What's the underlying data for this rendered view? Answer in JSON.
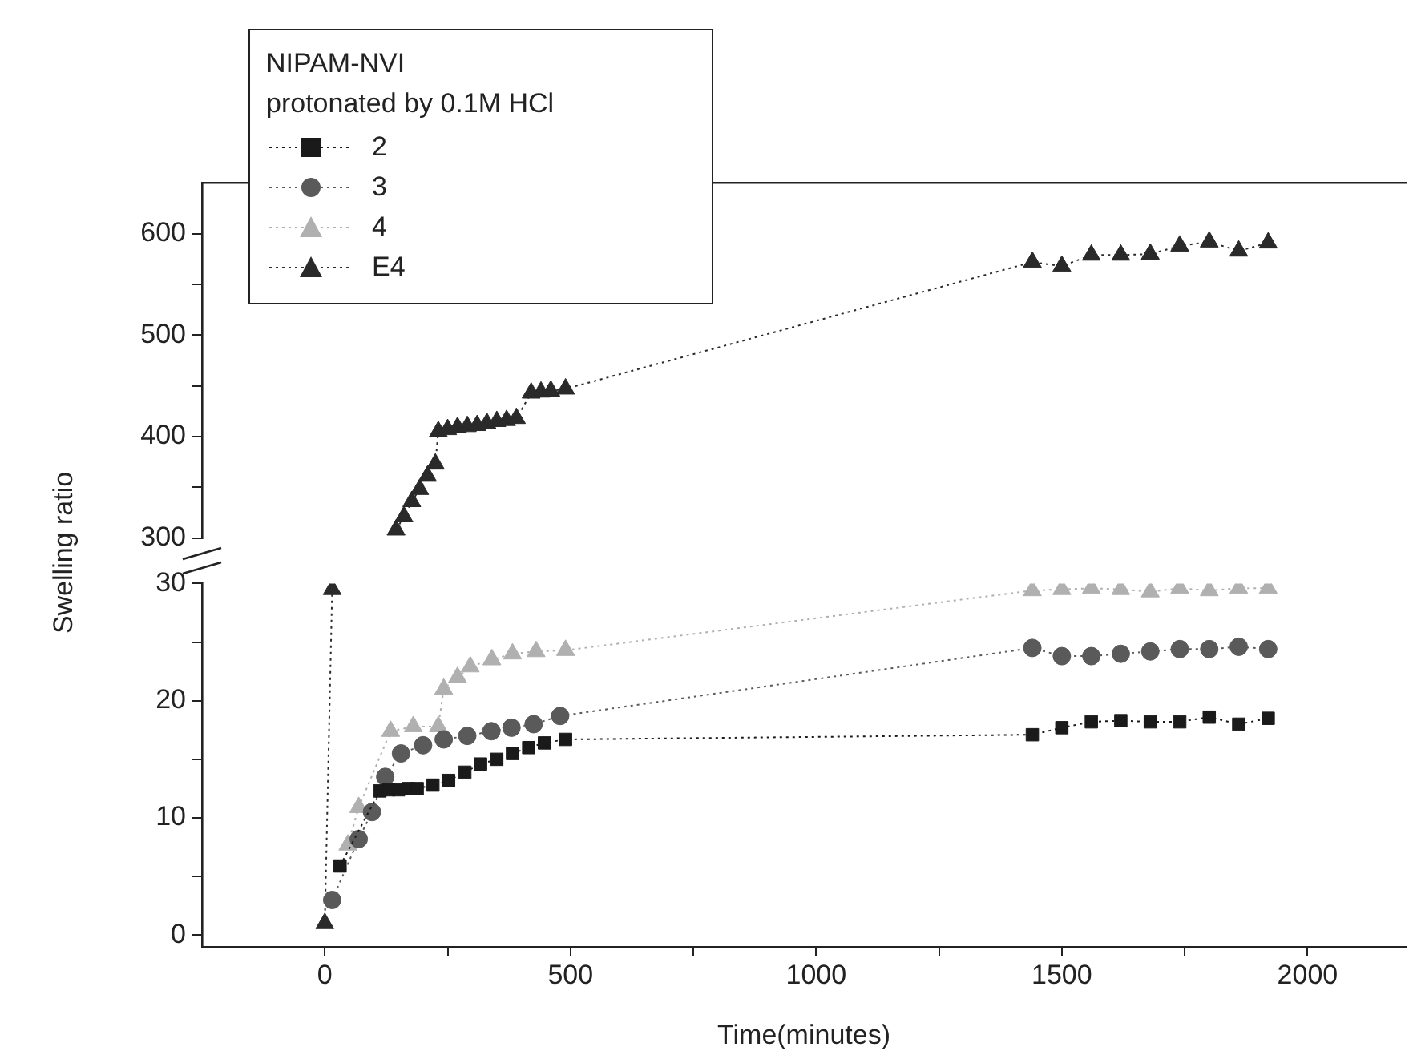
{
  "chart_data": [
    {
      "type": "line",
      "xlim": [
        -250,
        2200
      ],
      "ylim": [
        300,
        650
      ],
      "yticks": [
        300,
        {
          "value": 350,
          "label": null
        },
        400,
        {
          "value": 450,
          "label": null
        },
        500,
        {
          "value": 550,
          "label": null
        },
        600
      ],
      "tick_labels": "y",
      "line_style": "dotted",
      "series": [
        {
          "color": "#2a2a2a",
          "marker": "triangle",
          "x": [
            145,
            161,
            177,
            193,
            209,
            225,
            231,
            250,
            270,
            290,
            310,
            330,
            350,
            370,
            390,
            420,
            440,
            460,
            490,
            1440,
            1500,
            1560,
            1620,
            1680,
            1740,
            1800,
            1860,
            1920
          ],
          "values": [
            308,
            321,
            336,
            348,
            361,
            373,
            405,
            407,
            409,
            410,
            411,
            413,
            415,
            416,
            418,
            443,
            444,
            445,
            447,
            572,
            568,
            579,
            579,
            580,
            588,
            592,
            583,
            591
          ]
        }
      ]
    },
    {
      "type": "line",
      "xlabel": "Time(minutes)",
      "ylabel": "Swelling ratio",
      "legend": "top left",
      "legend_title": "NIPAM-NVI\nprotonated by 0.1M HCl",
      "xlim": [
        -250,
        2200
      ],
      "ylim": [
        -1,
        30
      ],
      "xticks": [
        0,
        {
          "value": 250,
          "label": null
        },
        500,
        {
          "value": 750,
          "label": null
        },
        1000,
        {
          "value": 1250,
          "label": null
        },
        1500,
        {
          "value": 1750,
          "label": null
        },
        2000
      ],
      "yticks": [
        0,
        {
          "value": 5,
          "label": null
        },
        10,
        {
          "value": 15,
          "label": null
        },
        20,
        {
          "value": 25,
          "label": null
        },
        30
      ],
      "line_style": "dotted",
      "series": [
        {
          "name": "2",
          "color": "#1a1a1a",
          "marker": "square",
          "x": [
            31,
            112,
            130,
            150,
            170,
            188,
            220,
            252,
            285,
            317,
            350,
            382,
            415,
            447,
            490,
            1440,
            1500,
            1560,
            1620,
            1680,
            1740,
            1800,
            1860,
            1920
          ],
          "values": [
            5.9,
            12.3,
            12.4,
            12.4,
            12.5,
            12.5,
            12.8,
            13.2,
            13.9,
            14.6,
            15.0,
            15.5,
            16.0,
            16.4,
            16.7,
            17.1,
            17.7,
            18.2,
            18.3,
            18.2,
            18.2,
            18.6,
            18.0,
            18.5
          ]
        },
        {
          "name": "3",
          "color": "#5a5a5a",
          "marker": "circle",
          "x": [
            15,
            69,
            96,
            123,
            155,
            200,
            242,
            290,
            339,
            380,
            425,
            479,
            1440,
            1500,
            1560,
            1620,
            1680,
            1740,
            1800,
            1860,
            1920
          ],
          "values": [
            3,
            8.2,
            10.5,
            13.5,
            15.5,
            16.2,
            16.7,
            17.0,
            17.4,
            17.7,
            18.0,
            18.7,
            24.5,
            23.8,
            23.8,
            24.0,
            24.2,
            24.4,
            24.4,
            24.6,
            24.4
          ]
        },
        {
          "name": "4",
          "color": "#b0b0b0",
          "marker": "triangle",
          "x": [
            47,
            69,
            134,
            180,
            231,
            242,
            270,
            296,
            340,
            382,
            430,
            490,
            1440,
            1500,
            1560,
            1620,
            1680,
            1740,
            1800,
            1860,
            1920
          ],
          "values": [
            7.7,
            10.9,
            17.4,
            17.8,
            17.8,
            21.0,
            22.0,
            22.9,
            23.5,
            24.0,
            24.2,
            24.3,
            29.4,
            29.5,
            29.6,
            29.5,
            29.3,
            29.6,
            29.4,
            29.6,
            29.6
          ]
        },
        {
          "name": "E4",
          "color": "#2a2a2a",
          "marker": "triangle",
          "x": [
            0,
            15
          ],
          "values": [
            1,
            29.5
          ]
        }
      ]
    }
  ]
}
